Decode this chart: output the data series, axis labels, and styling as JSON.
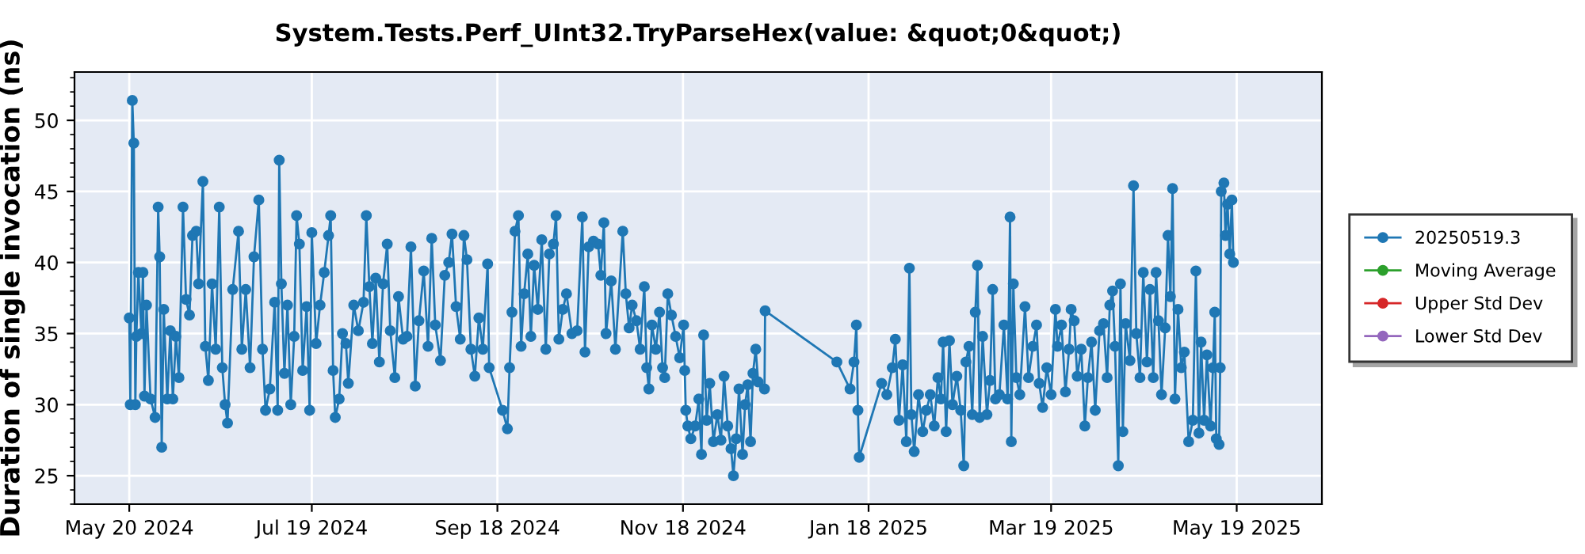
{
  "chart_data": {
    "type": "line",
    "title": "System.Tests.Perf_UInt32.TryParseHex(value: &quot;0&quot;)",
    "ylabel": "Duration of single invocation (ns)",
    "xlim": [
      "2024-05-02",
      "2025-06-16"
    ],
    "xticks": [
      {
        "value": "2024-05-20",
        "label": "May 20 2024"
      },
      {
        "value": "2024-07-19",
        "label": "Jul 19 2024"
      },
      {
        "value": "2024-09-18",
        "label": "Sep 18 2024"
      },
      {
        "value": "2024-11-18",
        "label": "Nov 18 2024"
      },
      {
        "value": "2025-01-18",
        "label": "Jan 18 2025"
      },
      {
        "value": "2025-03-19",
        "label": "Mar 19 2025"
      },
      {
        "value": "2025-05-19",
        "label": "May 19 2025"
      }
    ],
    "ylim": [
      23,
      53.4
    ],
    "yticks": [
      25,
      30,
      35,
      40,
      45,
      50
    ],
    "grid": true,
    "legend": "right",
    "marker": "circle",
    "line_style": "solid",
    "series": [
      {
        "name": "20250519.3",
        "color": "#1f77b4",
        "x": [
          "2024-05-20",
          "2024-05-20T08:00",
          "2024-05-21",
          "2024-05-21T12:00",
          "2024-05-22",
          "2024-05-22T08:00",
          "2024-05-23",
          "2024-05-24",
          "2024-05-24T12:00",
          "2024-05-25",
          "2024-05-25T16:00",
          "2024-05-27",
          "2024-05-28T12:00",
          "2024-05-29T12:00",
          "2024-05-30",
          "2024-05-30T16:00",
          "2024-05-31T08:00",
          "2024-06-01T12:00",
          "2024-06-02T12:00",
          "2024-06-03T08:00",
          "2024-06-04T08:00",
          "2024-06-05T08:00",
          "2024-06-06T16:00",
          "2024-06-07T16:00",
          "2024-06-08T19:00",
          "2024-06-09T19:00",
          "2024-06-11",
          "2024-06-11T19:00",
          "2024-06-13T05:00",
          "2024-06-14",
          "2024-06-15",
          "2024-06-16T05:00",
          "2024-06-17T10:00",
          "2024-06-18T14:00",
          "2024-06-19T14:00",
          "2024-06-20T12:00",
          "2024-06-21T07:00",
          "2024-06-23",
          "2024-06-24T22:00",
          "2024-06-26",
          "2024-06-27T07:00",
          "2024-06-28T17:00",
          "2024-06-30",
          "2024-07-01T14:00",
          "2024-07-02T19:00",
          "2024-07-03T19:00",
          "2024-07-05T05:00",
          "2024-07-06T19:00",
          "2024-07-07T19:00",
          "2024-07-08T07:00",
          "2024-07-09",
          "2024-07-10",
          "2024-07-11",
          "2024-07-12T02:00",
          "2024-07-13T05:00",
          "2024-07-14",
          "2024-07-14T22:00",
          "2024-07-16",
          "2024-07-17T07:00",
          "2024-07-18T07:00",
          "2024-07-19",
          "2024-07-20T10:00",
          "2024-07-21T17:00",
          "2024-07-23T02:00",
          "2024-07-24T12:00",
          "2024-07-25T05:00",
          "2024-07-26",
          "2024-07-26T17:00",
          "2024-07-28",
          "2024-07-29T02:00",
          "2024-07-30T05:00",
          "2024-07-31",
          "2024-08-01T19:00",
          "2024-08-03T07:00",
          "2024-08-05",
          "2024-08-05T22:00",
          "2024-08-06T22:00",
          "2024-08-07T22:00",
          "2024-08-09",
          "2024-08-10T05:00",
          "2024-08-11T10:00",
          "2024-08-12T19:00",
          "2024-08-13T19:00",
          "2024-08-15T07:00",
          "2024-08-16T12:00",
          "2024-08-18",
          "2024-08-19T07:00",
          "2024-08-20T14:00",
          "2024-08-22",
          "2024-08-23T05:00",
          "2024-08-24T19:00",
          "2024-08-26T05:00",
          "2024-08-27T10:00",
          "2024-08-28T14:00",
          "2024-08-30T07:00",
          "2024-08-31T17:00",
          "2024-09-02",
          "2024-09-03T02:00",
          "2024-09-04T10:00",
          "2024-09-05T19:00",
          "2024-09-07",
          "2024-09-08",
          "2024-09-09T07:00",
          "2024-09-10T14:00",
          "2024-09-11T22:00",
          "2024-09-13T05:00",
          "2024-09-14T19:00",
          "2024-09-15T07:00",
          "2024-09-19T17:00",
          "2024-09-21T07:00",
          "2024-09-22",
          "2024-09-22T19:00",
          "2024-09-23T19:00",
          "2024-09-24T22:00",
          "2024-09-25T19:00",
          "2024-09-26T19:00",
          "2024-09-28",
          "2024-09-29",
          "2024-09-30T02:00",
          "2024-10-01T07:00",
          "2024-10-02T14:00",
          "2024-10-03T22:00",
          "2024-10-05T02:00",
          "2024-10-06T10:00",
          "2024-10-07T07:00",
          "2024-10-08T05:00",
          "2024-10-09T12:00",
          "2024-10-10T17:00",
          "2024-10-12T12:00",
          "2024-10-14T05:00",
          "2024-10-15T22:00",
          "2024-10-16T19:00",
          "2024-10-18",
          "2024-10-19T14:00",
          "2024-10-21T02:00",
          "2024-10-22",
          "2024-10-23",
          "2024-10-23T17:00",
          "2024-10-25T10:00",
          "2024-10-26T19:00",
          "2024-10-29T05:00",
          "2024-10-30T05:00",
          "2024-10-31T07:00",
          "2024-11-01T07:00",
          "2024-11-02T17:00",
          "2024-11-03T22:00",
          "2024-11-05T07:00",
          "2024-11-06T02:00",
          "2024-11-06T19:00",
          "2024-11-07T19:00",
          "2024-11-09T02:00",
          "2024-11-10T07:00",
          "2024-11-11T07:00",
          "2024-11-12",
          "2024-11-13",
          "2024-11-14T05:00",
          "2024-11-15T14:00",
          "2024-11-16T22:00",
          "2024-11-18T05:00",
          "2024-11-18T14:00",
          "2024-11-18T22:00",
          "2024-11-19T14:00",
          "2024-11-20T14:00",
          "2024-11-22",
          "2024-11-23T05:00",
          "2024-11-24T02:00",
          "2024-11-24T19:00",
          "2024-11-25T19:00",
          "2024-11-26T19:00",
          "2024-11-28",
          "2024-11-29T07:00",
          "2024-11-30T12:00",
          "2024-12-01T12:00",
          "2024-12-02T17:00",
          "2024-12-03T19:00",
          "2024-12-04T14:00",
          "2024-12-05T12:00",
          "2024-12-06T10:00",
          "2024-12-07T14:00",
          "2024-12-08T10:00",
          "2024-12-09T07:00",
          "2024-12-10T05:00",
          "2024-12-11",
          "2024-12-11T22:00",
          "2024-12-12T17:00",
          "2024-12-14T19:00",
          "2024-12-15",
          "2025-01-07T14:00",
          "2025-01-11T22:00",
          "2025-01-13T05:00",
          "2025-01-14",
          "2025-01-14T12:00",
          "2025-01-14T22:00",
          "2025-01-22T07:00",
          "2025-01-24",
          "2025-01-25T19:00",
          "2025-01-26T19:00",
          "2025-01-28",
          "2025-01-29T05:00",
          "2025-01-30T10:00",
          "2025-01-31T10:00",
          "2025-02-01T02:00",
          "2025-02-02",
          "2025-02-03T10:00",
          "2025-02-04T19:00",
          "2025-02-06",
          "2025-02-07T07:00",
          "2025-02-08T14:00",
          "2025-02-09T19:00",
          "2025-02-10T19:00",
          "2025-02-11T12:00",
          "2025-02-12T12:00",
          "2025-02-13T14:00",
          "2025-02-14T14:00",
          "2025-02-16",
          "2025-02-17T07:00",
          "2025-02-18T07:00",
          "2025-02-19",
          "2025-02-20",
          "2025-02-21T02:00",
          "2025-02-22T02:00",
          "2025-02-22T19:00",
          "2025-02-23T12:00",
          "2025-02-24T12:00",
          "2025-02-25T22:00",
          "2025-02-26T22:00",
          "2025-02-27T19:00",
          "2025-02-28T17:00",
          "2025-03-02",
          "2025-03-03T12:00",
          "2025-03-04T17:00",
          "2025-03-05T12:00",
          "2025-03-05T22:00",
          "2025-03-06T14:00",
          "2025-03-07T14:00",
          "2025-03-08T17:00",
          "2025-03-10T10:00",
          "2025-03-11T14:00",
          "2025-03-13",
          "2025-03-14T05:00",
          "2025-03-15T02:00",
          "2025-03-16T05:00",
          "2025-03-17T14:00",
          "2025-03-19",
          "2025-03-20T10:00",
          "2025-03-21T02:00",
          "2025-03-22T10:00",
          "2025-03-23T17:00",
          "2025-03-24T22:00",
          "2025-03-25T14:00",
          "2025-03-26T14:00",
          "2025-03-27T14:00",
          "2025-03-28T22:00",
          "2025-03-30T02:00",
          "2025-03-31T02:00",
          "2025-04-01T07:00",
          "2025-04-02T12:00",
          "2025-04-03T22:00",
          "2025-04-05T05:00",
          "2025-04-06T10:00",
          "2025-04-07T07:00",
          "2025-04-08T05:00",
          "2025-04-09",
          "2025-04-10T02:00",
          "2025-04-10T19:00",
          "2025-04-11T14:00",
          "2025-04-12T12:00",
          "2025-04-13T22:00",
          "2025-04-15T02:00",
          "2025-04-16",
          "2025-04-17T05:00",
          "2025-04-18T07:00",
          "2025-04-19T12:00",
          "2025-04-20T12:00",
          "2025-04-21T14:00",
          "2025-04-22T12:00",
          "2025-04-23T07:00",
          "2025-04-24T07:00",
          "2025-04-25T12:00",
          "2025-04-26T10:00",
          "2025-04-27T05:00",
          "2025-04-27T22:00",
          "2025-04-28T17:00",
          "2025-04-29T17:00",
          "2025-04-30T19:00",
          "2025-05-01T19:00",
          "2025-05-03T05:00",
          "2025-05-04T14:00",
          "2025-05-05T14:00",
          "2025-05-06T14:00",
          "2025-05-07T07:00",
          "2025-05-08T07:00",
          "2025-05-09T05:00",
          "2025-05-10T10:00",
          "2025-05-11T05:00",
          "2025-05-11T19:00",
          "2025-05-12T07:00",
          "2025-05-13T05:00",
          "2025-05-13T14:00",
          "2025-05-13T22:00",
          "2025-05-14T19:00",
          "2025-05-15T07:00",
          "2025-05-16",
          "2025-05-16T17:00",
          "2025-05-17T10:00",
          "2025-05-17T22:00"
        ],
        "values": [
          36.1,
          30,
          51.4,
          48.4,
          30,
          34.8,
          39.3,
          35,
          39.3,
          30.6,
          37,
          30.4,
          29.1,
          43.9,
          40.4,
          27,
          36.7,
          30.4,
          35.2,
          30.4,
          34.8,
          31.9,
          43.9,
          37.4,
          36.3,
          41.9,
          42.2,
          38.5,
          45.7,
          34.1,
          31.7,
          38.5,
          33.9,
          43.9,
          32.6,
          30,
          28.7,
          38.1,
          42.2,
          33.9,
          38.1,
          32.6,
          40.4,
          44.4,
          33.9,
          29.6,
          31.1,
          37.2,
          29.6,
          47.2,
          38.5,
          32.2,
          37,
          30,
          34.8,
          43.3,
          41.3,
          32.4,
          36.9,
          29.6,
          42.1,
          34.3,
          37,
          39.3,
          41.9,
          43.3,
          32.4,
          29.1,
          30.4,
          35,
          34.3,
          31.5,
          37,
          35.2,
          37.2,
          43.3,
          38.3,
          34.3,
          38.9,
          33,
          38.5,
          41.3,
          35.2,
          31.9,
          37.6,
          34.6,
          34.8,
          41.1,
          31.3,
          35.9,
          39.4,
          34.1,
          41.7,
          35.6,
          33.1,
          39.1,
          40,
          42,
          36.9,
          34.6,
          41.9,
          40.2,
          33.9,
          32,
          36.1,
          33.9,
          39.9,
          32.6,
          29.6,
          28.3,
          32.6,
          36.5,
          42.2,
          43.3,
          34.1,
          37.8,
          40.6,
          34.8,
          39.8,
          36.7,
          41.6,
          33.9,
          40.6,
          41.3,
          43.3,
          34.6,
          36.7,
          37.8,
          35,
          35.2,
          43.2,
          33.7,
          41.1,
          41.5,
          41.3,
          39.1,
          42.8,
          35,
          38.7,
          33.9,
          42.2,
          37.8,
          35.4,
          37,
          35.9,
          33.9,
          38.3,
          32.6,
          31.1,
          35.6,
          33.9,
          36.5,
          32.6,
          31.9,
          37.8,
          36.3,
          34.8,
          33.3,
          35.6,
          32.4,
          29.6,
          28.5,
          27.6,
          28.5,
          30.4,
          26.5,
          34.9,
          28.9,
          31.5,
          27.4,
          29.3,
          27.5,
          32,
          28.5,
          26.9,
          25,
          27.6,
          31.1,
          26.5,
          30,
          31.4,
          27.4,
          32.2,
          33.9,
          31.6,
          31.1,
          36.6,
          33,
          31.1,
          33,
          35.6,
          29.6,
          26.3,
          31.5,
          30.7,
          32.6,
          34.6,
          28.9,
          32.8,
          27.4,
          39.6,
          29.3,
          26.7,
          30.7,
          28.1,
          29.6,
          30.7,
          28.5,
          31.9,
          30.4,
          34.4,
          28.1,
          34.5,
          30,
          32,
          29.6,
          25.7,
          33,
          34.1,
          29.3,
          36.5,
          39.8,
          29.1,
          34.8,
          29.3,
          31.7,
          38.1,
          30.4,
          30.7,
          35.6,
          30.4,
          43.2,
          27.4,
          38.5,
          31.9,
          30.7,
          36.9,
          31.9,
          34.1,
          35.6,
          31.5,
          29.8,
          32.6,
          30.7,
          36.7,
          34.1,
          35.6,
          30.9,
          33.9,
          36.7,
          35.9,
          32,
          33.9,
          28.5,
          31.9,
          34.4,
          29.6,
          35.2,
          35.7,
          31.9,
          37,
          38,
          34.1,
          25.7,
          38.5,
          28.1,
          35.7,
          33.1,
          45.4,
          35,
          31.9,
          39.3,
          33,
          38.1,
          31.9,
          39.3,
          35.9,
          30.7,
          35.4,
          41.9,
          37.6,
          45.2,
          30.4,
          36.7,
          32.6,
          33.7,
          27.4,
          28.9,
          39.4,
          28,
          34.4,
          28.9,
          33.5,
          28.5,
          32.6,
          36.5,
          27.6,
          27.2,
          32.6,
          45,
          45.6,
          41.9,
          44.1,
          40.6,
          44.4,
          40
        ]
      },
      {
        "name": "Moving Average",
        "color": "#2ca02c"
      },
      {
        "name": "Upper Std Dev",
        "color": "#d62728"
      },
      {
        "name": "Lower Std Dev",
        "color": "#9467bd"
      }
    ]
  }
}
